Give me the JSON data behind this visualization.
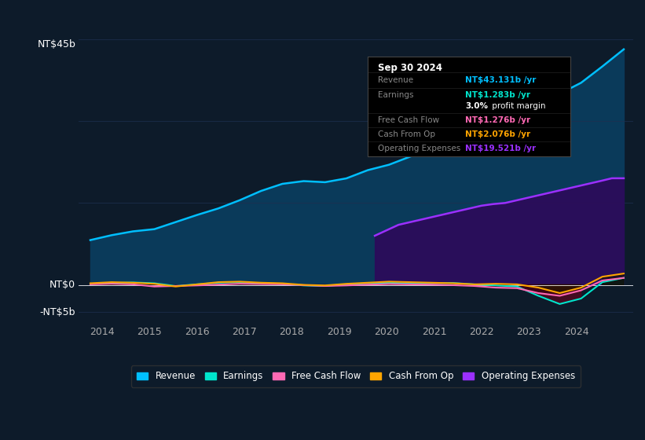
{
  "background_color": "#0d1b2a",
  "plot_bg_color": "#0d1b2a",
  "grid_color": "#1e3050",
  "text_color": "#aaaaaa",
  "ylim": [
    -7000000000,
    50000000000
  ],
  "ylabel_left_top": "NT$45b",
  "ylabel_left_zero": "NT$0",
  "ylabel_left_neg": "-NT$5b",
  "x_start_year": 2013.5,
  "x_end_year": 2025.2,
  "xtick_years": [
    2014,
    2015,
    2016,
    2017,
    2018,
    2019,
    2020,
    2021,
    2022,
    2023,
    2024
  ],
  "revenue_color": "#00bfff",
  "revenue_fill_color": "#0a3a5a",
  "earnings_color": "#00e5cc",
  "fcf_color": "#ff69b4",
  "cashfromop_color": "#ffa500",
  "opex_color": "#9b30ff",
  "opex_fill_color": "#2d0a5a",
  "revenue": [
    8200000000,
    9100000000,
    9800000000,
    10200000000,
    11500000000,
    12800000000,
    14000000000,
    15500000000,
    17200000000,
    18500000000,
    19000000000,
    18800000000,
    19500000000,
    21000000000,
    22000000000,
    23500000000,
    25000000000,
    27000000000,
    29000000000,
    30500000000,
    31500000000,
    33000000000,
    35000000000,
    37000000000,
    40000000000,
    43131000000
  ],
  "earnings": [
    200000000,
    350000000,
    450000000,
    300000000,
    -200000000,
    100000000,
    400000000,
    500000000,
    300000000,
    200000000,
    -100000000,
    -200000000,
    100000000,
    300000000,
    400000000,
    250000000,
    300000000,
    350000000,
    100000000,
    -100000000,
    -300000000,
    -2000000000,
    -3500000000,
    -2500000000,
    500000000,
    1283000000
  ],
  "fcf": [
    100000000,
    200000000,
    100000000,
    -300000000,
    -200000000,
    -100000000,
    50000000,
    200000000,
    150000000,
    100000000,
    -50000000,
    -200000000,
    -100000000,
    50000000,
    150000000,
    100000000,
    50000000,
    -50000000,
    -200000000,
    -500000000,
    -600000000,
    -1500000000,
    -2000000000,
    -1000000000,
    800000000,
    1276000000
  ],
  "cashfromop": [
    300000000,
    500000000,
    400000000,
    200000000,
    -300000000,
    100000000,
    500000000,
    600000000,
    400000000,
    300000000,
    0,
    -100000000,
    200000000,
    400000000,
    600000000,
    500000000,
    400000000,
    300000000,
    100000000,
    200000000,
    100000000,
    -500000000,
    -1500000000,
    -500000000,
    1500000000,
    2076000000
  ],
  "opex_x": [
    2019.75,
    2020.0,
    2020.25,
    2020.5,
    2020.75,
    2021.0,
    2021.25,
    2021.5,
    2021.75,
    2022.0,
    2022.25,
    2022.5,
    2022.75,
    2023.0,
    2023.25,
    2023.5,
    2023.75,
    2024.0,
    2024.25,
    2024.5,
    2024.75,
    2025.0
  ],
  "opex": [
    9000000000,
    10000000000,
    11000000000,
    11500000000,
    12000000000,
    12500000000,
    13000000000,
    13500000000,
    14000000000,
    14500000000,
    14800000000,
    15000000000,
    15500000000,
    16000000000,
    16500000000,
    17000000000,
    17500000000,
    18000000000,
    18500000000,
    19000000000,
    19521000000,
    19521000000
  ],
  "infobox": {
    "date": "Sep 30 2024",
    "rows": [
      {
        "label": "Revenue",
        "value": "NT$43.131b /yr",
        "value_color": "#00bfff"
      },
      {
        "label": "Earnings",
        "value": "NT$1.283b /yr",
        "value_color": "#00e5cc"
      },
      {
        "label": "",
        "value": "3.0% profit margin",
        "value_color": "#ffffff",
        "is_margin": true
      },
      {
        "label": "Free Cash Flow",
        "value": "NT$1.276b /yr",
        "value_color": "#ff69b4"
      },
      {
        "label": "Cash From Op",
        "value": "NT$2.076b /yr",
        "value_color": "#ffa500"
      },
      {
        "label": "Operating Expenses",
        "value": "NT$19.521b /yr",
        "value_color": "#9b30ff"
      }
    ],
    "bg_color": "#000000",
    "border_color": "#444444",
    "label_color": "#888888",
    "divider_color": "#222222"
  },
  "legend": [
    {
      "label": "Revenue",
      "color": "#00bfff"
    },
    {
      "label": "Earnings",
      "color": "#00e5cc"
    },
    {
      "label": "Free Cash Flow",
      "color": "#ff69b4"
    },
    {
      "label": "Cash From Op",
      "color": "#ffa500"
    },
    {
      "label": "Operating Expenses",
      "color": "#9b30ff"
    }
  ]
}
